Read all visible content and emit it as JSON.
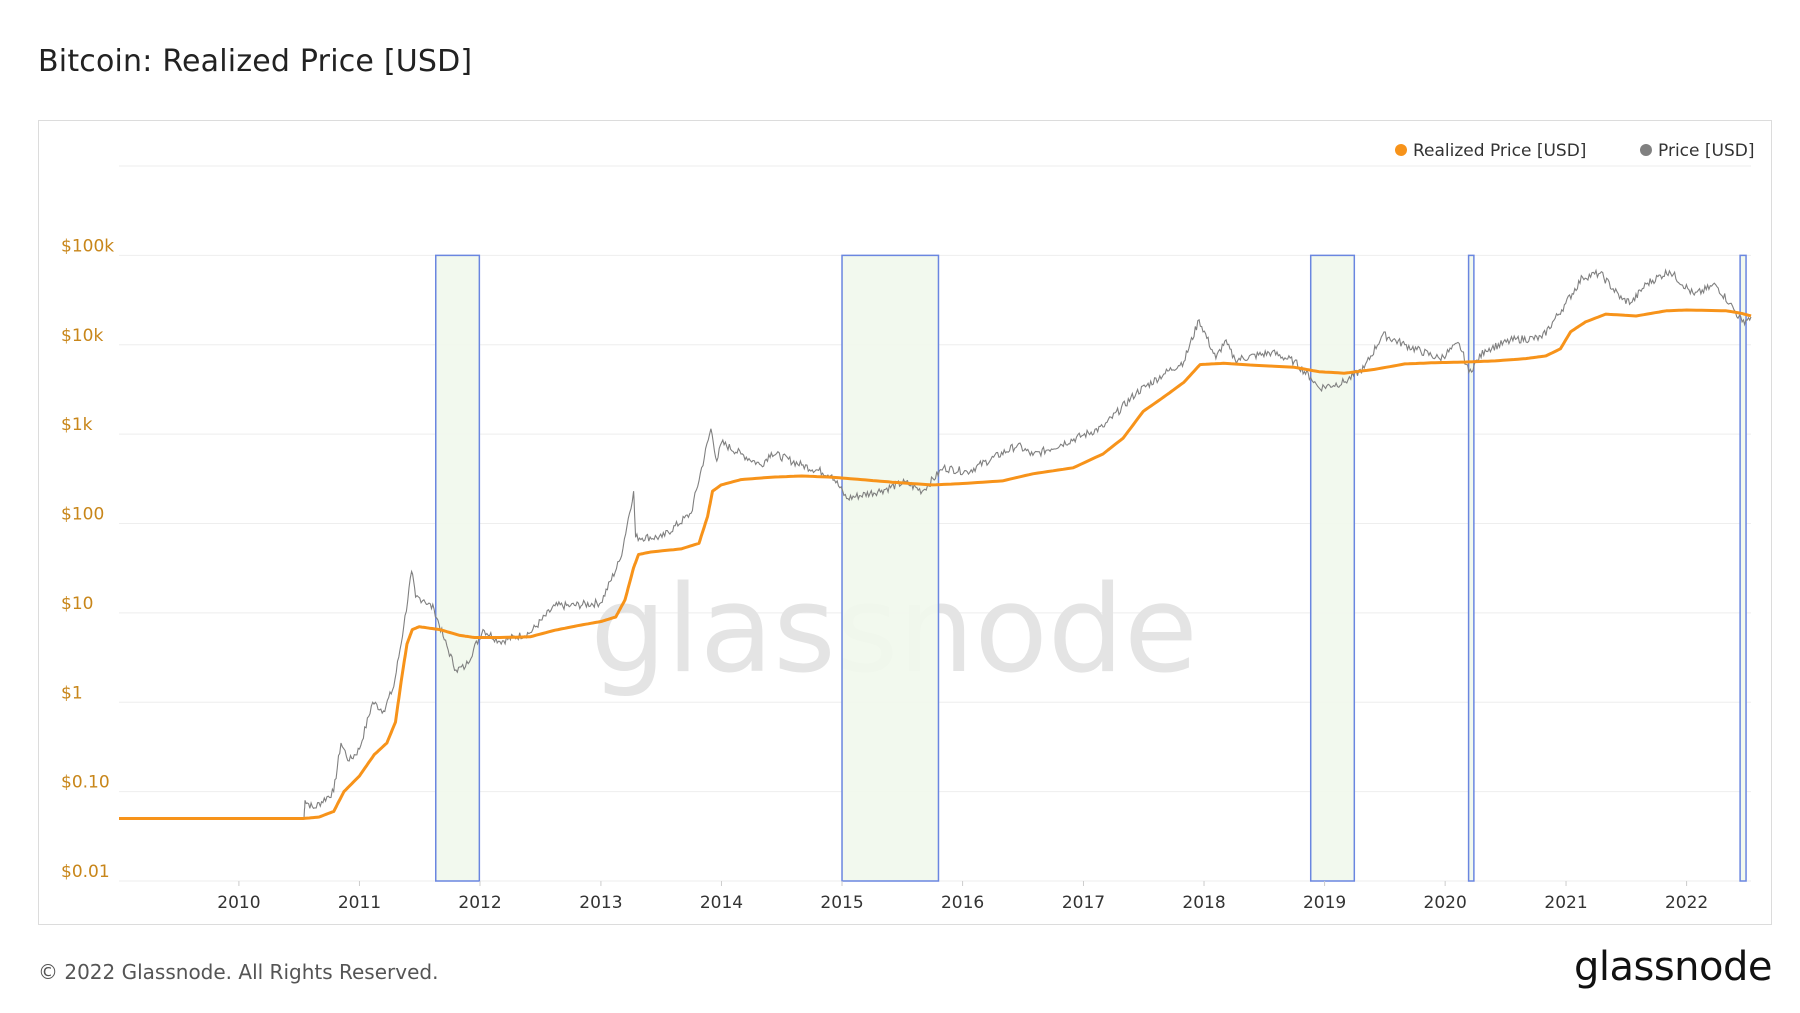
{
  "header": {
    "title": "Bitcoin: Realized Price [USD]"
  },
  "footer": {
    "copyright": "© 2022 Glassnode. All Rights Reserved.",
    "brand": "glassnode"
  },
  "watermark": "glassnode",
  "colors": {
    "realized": "#f7931a",
    "price": "#808080",
    "band_fill": "#f1f8ec",
    "band_stroke": "#6a86e0",
    "grid": "#eeeeee"
  },
  "chart_data": {
    "type": "line",
    "title": "Bitcoin: Realized Price [USD]",
    "y_scale": "log",
    "ylim": [
      0.01,
      1000000
    ],
    "xlim": [
      "2009-01-03",
      "2022-07-15"
    ],
    "legend": {
      "position": "top-right",
      "entries": [
        "Realized Price [USD]",
        "Price [USD]"
      ]
    },
    "y_ticks": [
      {
        "value": 0.01,
        "label": "$0.01"
      },
      {
        "value": 0.1,
        "label": "$0.10"
      },
      {
        "value": 1,
        "label": "$1"
      },
      {
        "value": 10,
        "label": "$10"
      },
      {
        "value": 100,
        "label": "$100"
      },
      {
        "value": 1000,
        "label": "$1k"
      },
      {
        "value": 10000,
        "label": "$10k"
      },
      {
        "value": 100000,
        "label": "$100k"
      }
    ],
    "x_ticks": [
      "2010",
      "2011",
      "2012",
      "2013",
      "2014",
      "2015",
      "2016",
      "2017",
      "2018",
      "2019",
      "2020",
      "2021",
      "2022"
    ],
    "highlight_bands": [
      {
        "start": "2011-08-20",
        "end": "2011-12-30"
      },
      {
        "start": "2015-01-01",
        "end": "2015-10-20"
      },
      {
        "start": "2018-11-20",
        "end": "2019-04-01"
      },
      {
        "start": "2020-03-12",
        "end": "2020-03-28"
      },
      {
        "start": "2022-06-12",
        "end": "2022-06-30"
      }
    ],
    "series": [
      {
        "name": "Realized Price [USD]",
        "points": [
          [
            "2009-01-03",
            0.05
          ],
          [
            "2010-07-15",
            0.05
          ],
          [
            "2010-09-01",
            0.052
          ],
          [
            "2010-10-15",
            0.06
          ],
          [
            "2010-11-15",
            0.1
          ],
          [
            "2011-01-01",
            0.15
          ],
          [
            "2011-02-15",
            0.26
          ],
          [
            "2011-03-25",
            0.35
          ],
          [
            "2011-04-20",
            0.6
          ],
          [
            "2011-05-10",
            2.0
          ],
          [
            "2011-05-25",
            4.5
          ],
          [
            "2011-06-10",
            6.5
          ],
          [
            "2011-07-01",
            7.0
          ],
          [
            "2011-09-01",
            6.5
          ],
          [
            "2011-11-01",
            5.6
          ],
          [
            "2011-12-15",
            5.3
          ],
          [
            "2012-03-01",
            5.3
          ],
          [
            "2012-06-01",
            5.4
          ],
          [
            "2012-08-15",
            6.4
          ],
          [
            "2012-11-01",
            7.3
          ],
          [
            "2013-01-01",
            8.0
          ],
          [
            "2013-02-15",
            9.0
          ],
          [
            "2013-03-15",
            14
          ],
          [
            "2013-04-10",
            32
          ],
          [
            "2013-04-25",
            45
          ],
          [
            "2013-06-01",
            48
          ],
          [
            "2013-09-01",
            52
          ],
          [
            "2013-10-25",
            60
          ],
          [
            "2013-11-20",
            120
          ],
          [
            "2013-12-05",
            230
          ],
          [
            "2013-12-31",
            270
          ],
          [
            "2014-03-01",
            310
          ],
          [
            "2014-06-01",
            330
          ],
          [
            "2014-09-01",
            340
          ],
          [
            "2014-12-01",
            330
          ],
          [
            "2015-03-01",
            310
          ],
          [
            "2015-06-01",
            290
          ],
          [
            "2015-10-01",
            270
          ],
          [
            "2016-01-01",
            280
          ],
          [
            "2016-05-01",
            300
          ],
          [
            "2016-08-01",
            360
          ],
          [
            "2016-12-01",
            420
          ],
          [
            "2017-03-01",
            600
          ],
          [
            "2017-05-01",
            900
          ],
          [
            "2017-07-01",
            1800
          ],
          [
            "2017-09-01",
            2600
          ],
          [
            "2017-11-01",
            3800
          ],
          [
            "2017-12-20",
            6000
          ],
          [
            "2018-03-01",
            6200
          ],
          [
            "2018-06-01",
            5900
          ],
          [
            "2018-10-01",
            5600
          ],
          [
            "2018-12-15",
            5000
          ],
          [
            "2019-03-01",
            4800
          ],
          [
            "2019-06-01",
            5300
          ],
          [
            "2019-09-01",
            6100
          ],
          [
            "2019-12-01",
            6300
          ],
          [
            "2020-03-01",
            6400
          ],
          [
            "2020-06-01",
            6600
          ],
          [
            "2020-09-01",
            7000
          ],
          [
            "2020-11-01",
            7500
          ],
          [
            "2020-12-15",
            9000
          ],
          [
            "2021-01-15",
            14000
          ],
          [
            "2021-03-01",
            18000
          ],
          [
            "2021-05-01",
            22000
          ],
          [
            "2021-08-01",
            21000
          ],
          [
            "2021-11-01",
            24000
          ],
          [
            "2022-01-01",
            24500
          ],
          [
            "2022-05-01",
            24000
          ],
          [
            "2022-06-15",
            22500
          ],
          [
            "2022-07-15",
            21000
          ]
        ]
      },
      {
        "name": "Price [USD]",
        "points": [
          [
            "2010-07-17",
            0.05
          ],
          [
            "2010-07-20",
            0.08
          ],
          [
            "2010-08-15",
            0.065
          ],
          [
            "2010-10-15",
            0.1
          ],
          [
            "2010-11-06",
            0.35
          ],
          [
            "2010-12-01",
            0.22
          ],
          [
            "2011-01-01",
            0.3
          ],
          [
            "2011-02-10",
            1.0
          ],
          [
            "2011-03-15",
            0.8
          ],
          [
            "2011-04-15",
            1.5
          ],
          [
            "2011-05-15",
            7
          ],
          [
            "2011-06-08",
            29
          ],
          [
            "2011-06-20",
            15
          ],
          [
            "2011-07-15",
            14
          ],
          [
            "2011-08-15",
            11
          ],
          [
            "2011-09-15",
            5
          ],
          [
            "2011-10-20",
            2.3
          ],
          [
            "2011-11-18",
            2.5
          ],
          [
            "2012-01-10",
            6.5
          ],
          [
            "2012-03-01",
            4.8
          ],
          [
            "2012-06-01",
            6
          ],
          [
            "2012-08-15",
            12
          ],
          [
            "2012-10-01",
            12
          ],
          [
            "2013-01-01",
            13
          ],
          [
            "2013-03-01",
            40
          ],
          [
            "2013-04-10",
            230
          ],
          [
            "2013-04-16",
            70
          ],
          [
            "2013-07-05",
            70
          ],
          [
            "2013-10-01",
            130
          ],
          [
            "2013-11-30",
            1150
          ],
          [
            "2013-12-18",
            500
          ],
          [
            "2014-01-01",
            800
          ],
          [
            "2014-03-01",
            600
          ],
          [
            "2014-05-01",
            450
          ],
          [
            "2014-06-01",
            620
          ],
          [
            "2014-09-01",
            450
          ],
          [
            "2014-12-01",
            350
          ],
          [
            "2015-01-15",
            190
          ],
          [
            "2015-05-01",
            235
          ],
          [
            "2015-07-10",
            290
          ],
          [
            "2015-09-01",
            230
          ],
          [
            "2015-11-04",
            420
          ],
          [
            "2016-01-15",
            380
          ],
          [
            "2016-06-15",
            750
          ],
          [
            "2016-08-01",
            580
          ],
          [
            "2016-12-31",
            970
          ],
          [
            "2017-03-01",
            1200
          ],
          [
            "2017-06-10",
            2900
          ],
          [
            "2017-09-01",
            4700
          ],
          [
            "2017-11-01",
            6500
          ],
          [
            "2017-12-17",
            19000
          ],
          [
            "2018-02-06",
            7000
          ],
          [
            "2018-03-05",
            11000
          ],
          [
            "2018-04-05",
            6800
          ],
          [
            "2018-07-25",
            8200
          ],
          [
            "2018-10-01",
            6500
          ],
          [
            "2018-11-20",
            4300
          ],
          [
            "2018-12-15",
            3300
          ],
          [
            "2019-03-01",
            3800
          ],
          [
            "2019-05-01",
            5500
          ],
          [
            "2019-06-26",
            13000
          ],
          [
            "2019-09-01",
            10000
          ],
          [
            "2019-12-15",
            7000
          ],
          [
            "2020-02-13",
            10300
          ],
          [
            "2020-03-13",
            4900
          ],
          [
            "2020-05-01",
            8800
          ],
          [
            "2020-08-01",
            11500
          ],
          [
            "2020-10-20",
            11900
          ],
          [
            "2020-12-31",
            29000
          ],
          [
            "2021-02-20",
            57000
          ],
          [
            "2021-04-14",
            63000
          ],
          [
            "2021-06-20",
            32000
          ],
          [
            "2021-07-20",
            30000
          ],
          [
            "2021-09-01",
            48000
          ],
          [
            "2021-11-10",
            67000
          ],
          [
            "2022-01-24",
            36000
          ],
          [
            "2022-03-30",
            47000
          ],
          [
            "2022-05-12",
            29000
          ],
          [
            "2022-06-18",
            18000
          ],
          [
            "2022-07-15",
            20500
          ]
        ]
      }
    ]
  }
}
